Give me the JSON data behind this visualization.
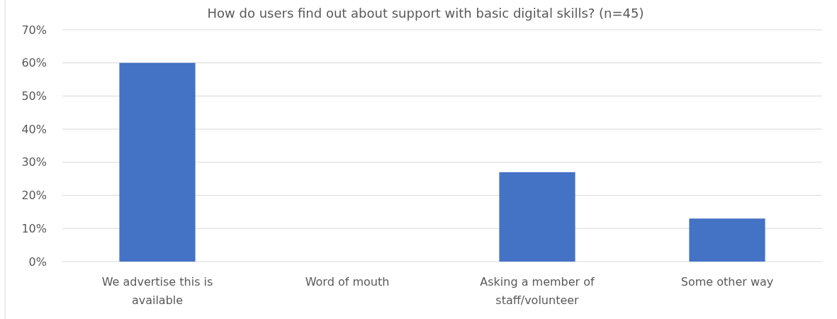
{
  "chart_data": {
    "type": "bar",
    "title": "How do users find out about support with basic digital skills? (n=45)",
    "categories": [
      "We advertise this is available",
      "Word of mouth",
      "Asking a member of staff/volunteer",
      "Some other way"
    ],
    "values": [
      60,
      0,
      27,
      13
    ],
    "color": "#4472c4",
    "ylim": [
      0,
      70
    ],
    "yticks": [
      {
        "value": 0,
        "label": "0%"
      },
      {
        "value": 10,
        "label": "10%"
      },
      {
        "value": 20,
        "label": "20%"
      },
      {
        "value": 30,
        "label": "30%"
      },
      {
        "value": 40,
        "label": "40%"
      },
      {
        "value": 50,
        "label": "50%"
      },
      {
        "value": 60,
        "label": "60%"
      },
      {
        "value": 70,
        "label": "70%"
      }
    ],
    "grid": "y"
  }
}
